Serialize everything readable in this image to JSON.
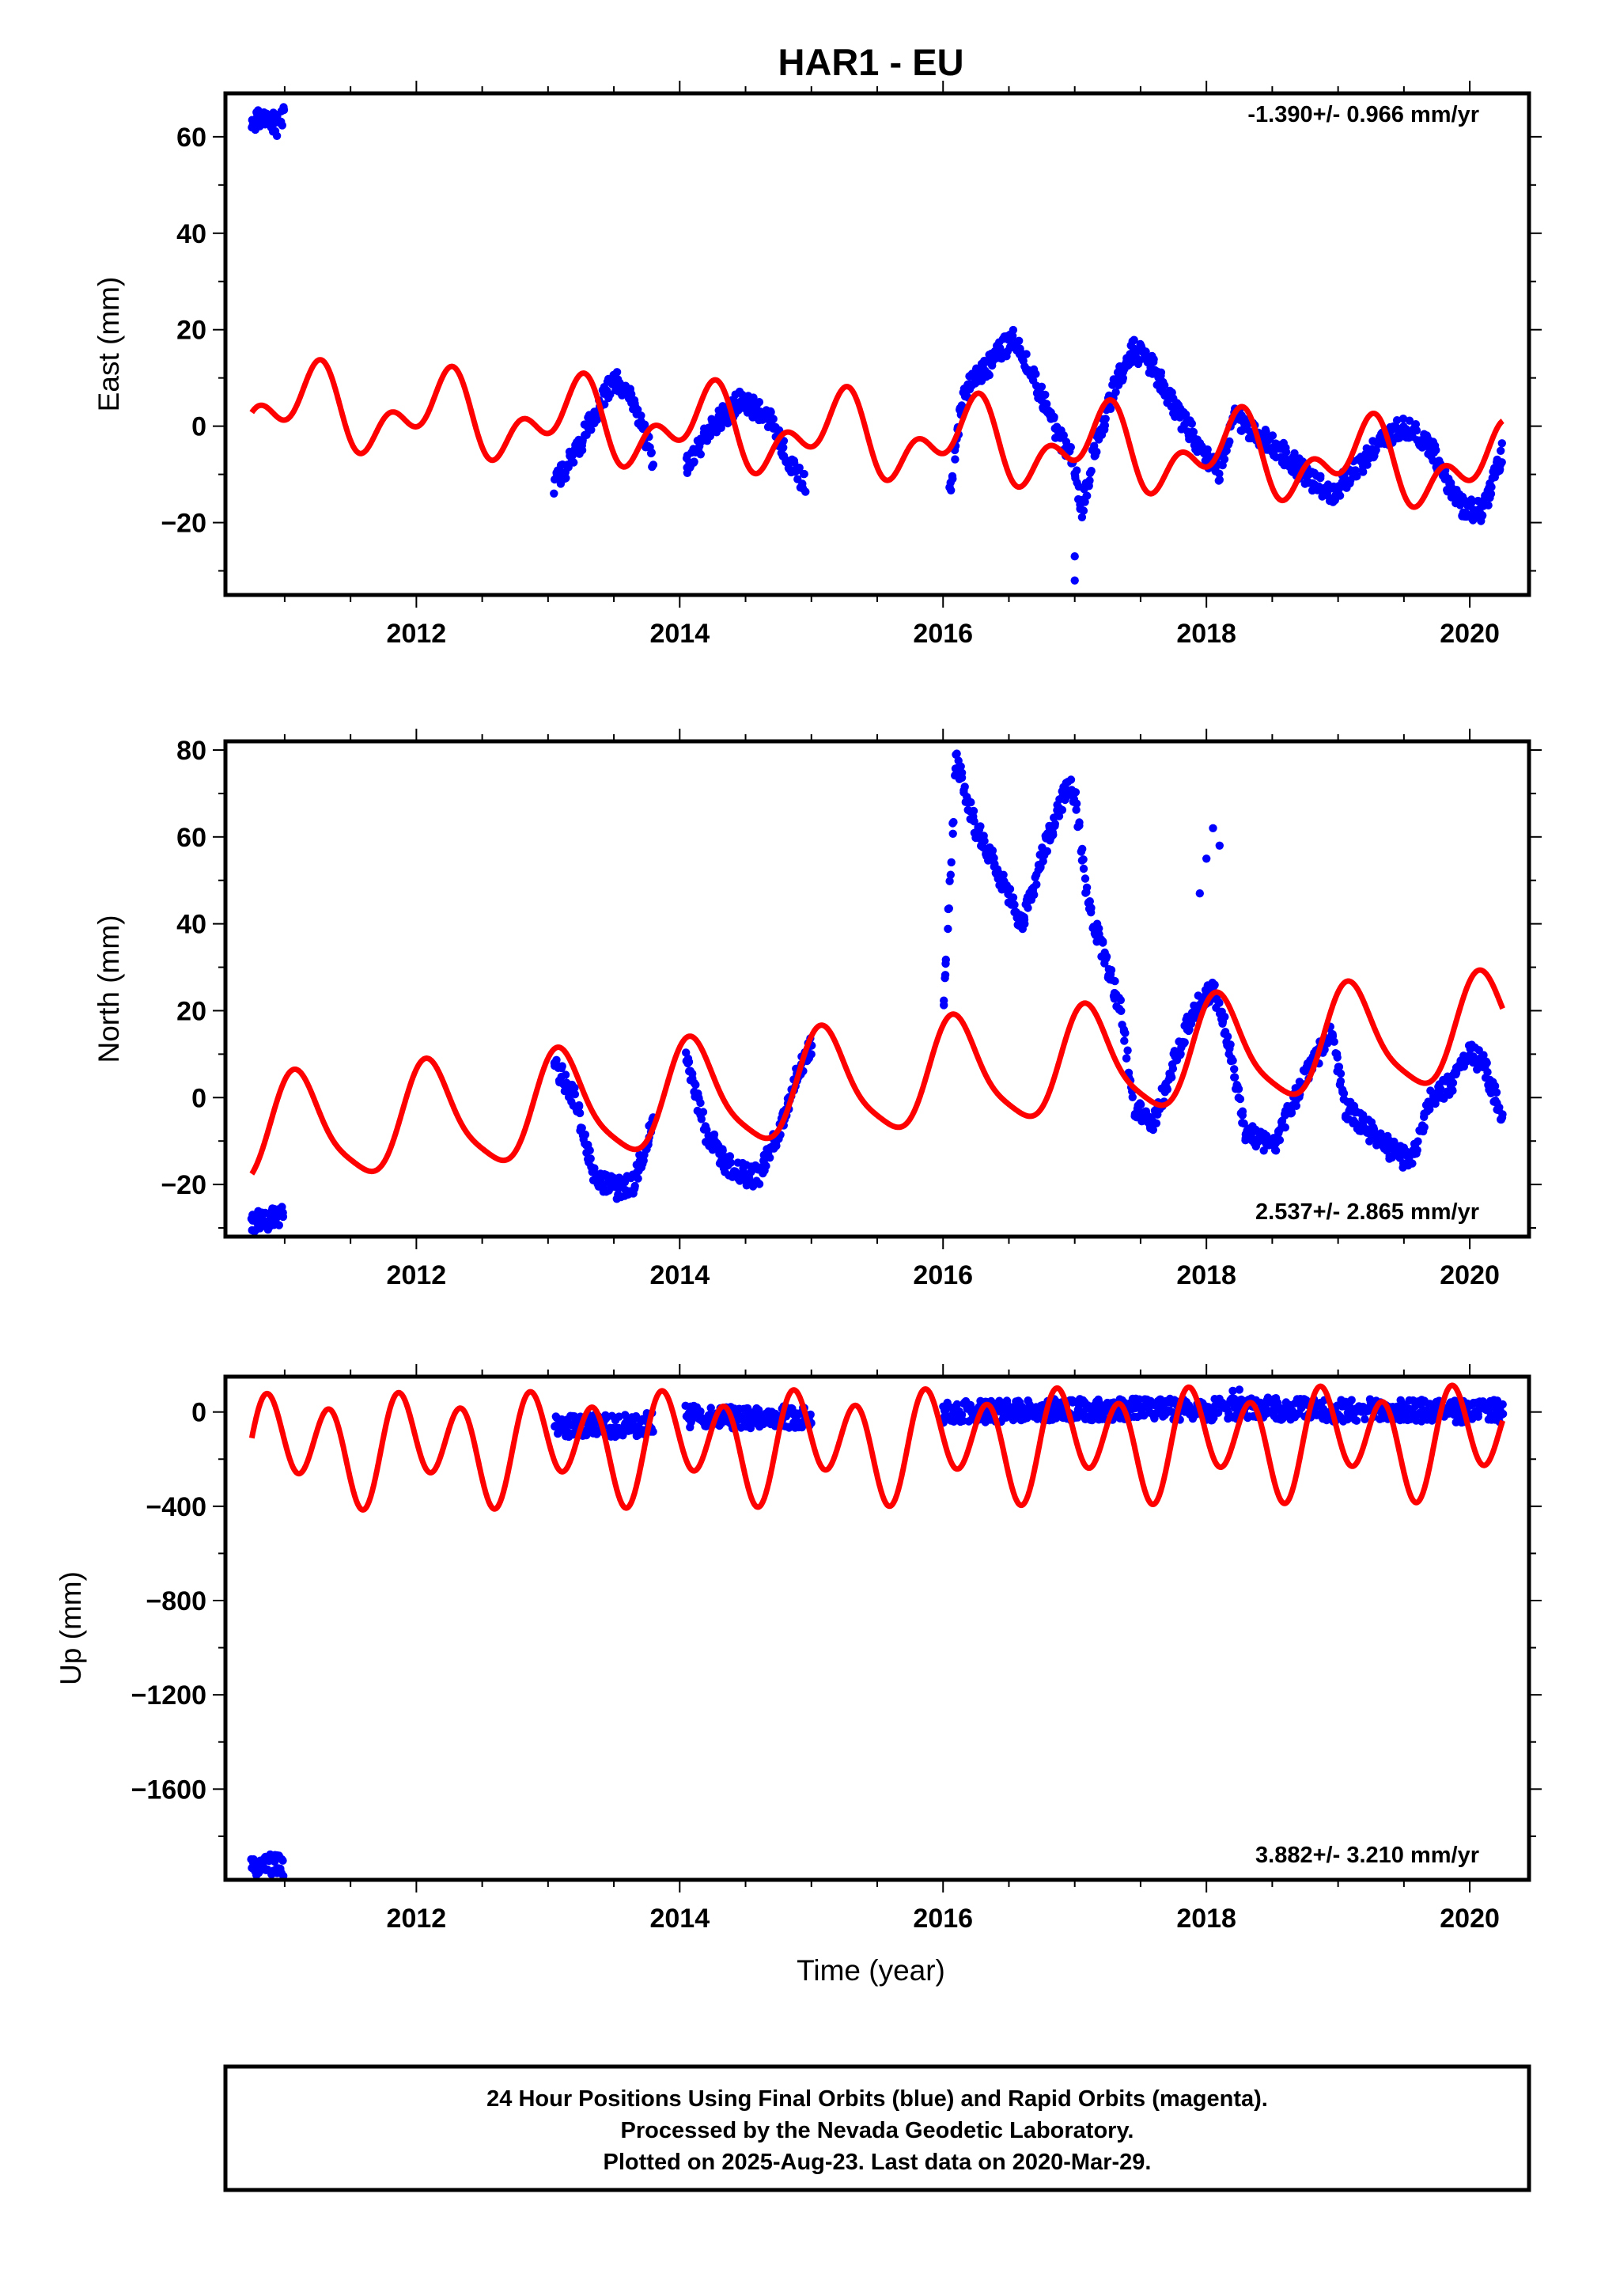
{
  "chart_data": {
    "type": "scatter",
    "title": "HAR1 - EU",
    "xlabel": "Time (year)",
    "xlim": [
      2010.55,
      2020.45
    ],
    "x_ticks": [
      2012,
      2014,
      2016,
      2018,
      2020
    ],
    "x_tick_labels": [
      "2012",
      "2014",
      "2016",
      "2018",
      "2020"
    ],
    "series_colors": {
      "observed": "#0000ff",
      "model": "#ff0000"
    },
    "panels": [
      {
        "name": "east",
        "ylabel": "East (mm)",
        "ylim": [
          -35,
          69
        ],
        "y_ticks": [
          -20,
          0,
          20,
          40,
          60
        ],
        "y_tick_labels": [
          "−20",
          "0",
          "20",
          "40",
          "60"
        ],
        "rate_text": "-1.390+/- 0.966 mm/yr",
        "rate_position": "top-right",
        "observed_segments": [
          {
            "x": [
              2010.75,
              2010.85,
              2010.95,
              2011.0
            ],
            "y": [
              63,
              64,
              62,
              65
            ]
          },
          {
            "x": [
              2013.05,
              2013.2,
              2013.35,
              2013.5,
              2013.65,
              2013.8
            ],
            "y": [
              -12,
              -6,
              2,
              10,
              5,
              -7
            ]
          },
          {
            "x": [
              2014.05,
              2014.25,
              2014.45,
              2014.65,
              2014.85,
              2014.95
            ],
            "y": [
              -8,
              0,
              5,
              3,
              -8,
              -12
            ]
          },
          {
            "x": [
              2016.05,
              2016.15,
              2016.3,
              2016.45,
              2016.55,
              2016.65,
              2016.8,
              2016.9,
              2017.0,
              2017.05,
              2017.15,
              2017.3,
              2017.45,
              2017.6,
              2017.8,
              2017.95,
              2018.1,
              2018.2,
              2018.4,
              2018.6,
              2018.8,
              2018.95,
              2019.1,
              2019.3,
              2019.5,
              2019.7,
              2019.8,
              2019.95,
              2020.1,
              2020.25
            ],
            "y": [
              -14,
              7,
              11,
              16,
              18,
              12,
              3,
              -3,
              -8,
              -18,
              -5,
              8,
              16,
              12,
              2,
              -4,
              -10,
              2,
              -2,
              -6,
              -11,
              -14,
              -10,
              -4,
              0,
              -4,
              -10,
              -17,
              -18,
              -5
            ]
          }
        ],
        "outliers": [
          [
            2017.0,
            -27
          ],
          [
            2017.0,
            -32
          ]
        ],
        "model": {
          "offset": 4.2,
          "rate": -1.39,
          "a1": 6.0,
          "p1": 0.3,
          "a2": 5.0,
          "p2": 4.2
        }
      },
      {
        "name": "north",
        "ylabel": "North (mm)",
        "ylim": [
          -32,
          82
        ],
        "y_ticks": [
          -20,
          0,
          20,
          40,
          60,
          80
        ],
        "y_tick_labels": [
          "−20",
          "0",
          "20",
          "40",
          "60",
          "80"
        ],
        "rate_text": "2.537+/- 2.865 mm/yr",
        "rate_position": "bottom-right",
        "observed_segments": [
          {
            "x": [
              2010.75,
              2010.85,
              2010.95,
              2011.0
            ],
            "y": [
              -29,
              -28,
              -28,
              -27
            ]
          },
          {
            "x": [
              2013.05,
              2013.2,
              2013.35,
              2013.5,
              2013.65,
              2013.8
            ],
            "y": [
              8,
              0,
              -18,
              -21,
              -20,
              -5
            ]
          },
          {
            "x": [
              2014.05,
              2014.2,
              2014.35,
              2014.5,
              2014.6,
              2014.75,
              2014.9,
              2015.0
            ],
            "y": [
              8,
              -8,
              -15,
              -18,
              -18,
              -8,
              6,
              12
            ]
          },
          {
            "x": [
              2016.0,
              2016.1,
              2016.25,
              2016.45,
              2016.6,
              2016.8,
              2016.95,
              2017.0,
              2017.1,
              2017.25,
              2017.35,
              2017.45,
              2017.6,
              2017.75,
              2017.9,
              2018.05,
              2018.15,
              2018.3,
              2018.5,
              2018.75,
              2018.95,
              2019.05,
              2019.25,
              2019.4,
              2019.55,
              2019.7,
              2019.85,
              2020.0,
              2020.1,
              2020.2,
              2020.25
            ],
            "y": [
              18,
              78,
              62,
              50,
              40,
              60,
              72,
              70,
              45,
              30,
              20,
              -2,
              -6,
              8,
              20,
              25,
              15,
              -8,
              -12,
              5,
              15,
              -2,
              -8,
              -12,
              -15,
              0,
              3,
              10,
              8,
              0,
              -6
            ]
          }
        ],
        "outliers": [
          [
            2017.95,
            47
          ],
          [
            2018.0,
            55
          ],
          [
            2018.05,
            62
          ],
          [
            2018.1,
            58
          ]
        ],
        "model": {
          "offset": -8.5,
          "rate": 2.537,
          "a1": 12.0,
          "p1": 0.95,
          "a2": 2.5,
          "p2": 1.0
        }
      },
      {
        "name": "up",
        "ylabel": "Up (mm)",
        "ylim": [
          -1985,
          150
        ],
        "y_ticks": [
          -1600,
          -1200,
          -800,
          -400,
          0
        ],
        "y_tick_labels": [
          "−1600",
          "−1200",
          "−800",
          "−400",
          "0"
        ],
        "rate_text": "3.882+/- 3.210 mm/yr",
        "rate_position": "bottom-right",
        "observed_segments": [
          {
            "x": [
              2010.75,
              2010.85,
              2010.95,
              2011.0
            ],
            "y": [
              -1920,
              -1920,
              -1925,
              -1930
            ]
          },
          {
            "x": [
              2013.05,
              2013.3,
              2013.55,
              2013.8
            ],
            "y": [
              -60,
              -55,
              -60,
              -50
            ]
          },
          {
            "x": [
              2014.05,
              2014.4,
              2014.75,
              2015.0
            ],
            "y": [
              -20,
              -25,
              -20,
              -25
            ]
          },
          {
            "x": [
              2016.0,
              2016.5,
              2017.0,
              2017.5,
              2018.0,
              2018.5,
              2019.0,
              2019.5,
              2020.0,
              2020.25
            ],
            "y": [
              0,
              5,
              10,
              15,
              10,
              15,
              5,
              10,
              0,
              5
            ]
          }
        ],
        "outliers": [
          [
            2018.2,
            90
          ],
          [
            2018.25,
            95
          ]
        ],
        "model": {
          "offset": -150,
          "rate": 3.882,
          "a1": 85,
          "p1": 1.35,
          "a2": 190,
          "p2": 3.45
        }
      }
    ],
    "footer": [
      "24 Hour Positions Using Final Orbits (blue) and Rapid Orbits (magenta).",
      "Processed by the Nevada Geodetic Laboratory.",
      "Plotted on 2025-Aug-23. Last data on 2020-Mar-29."
    ]
  }
}
